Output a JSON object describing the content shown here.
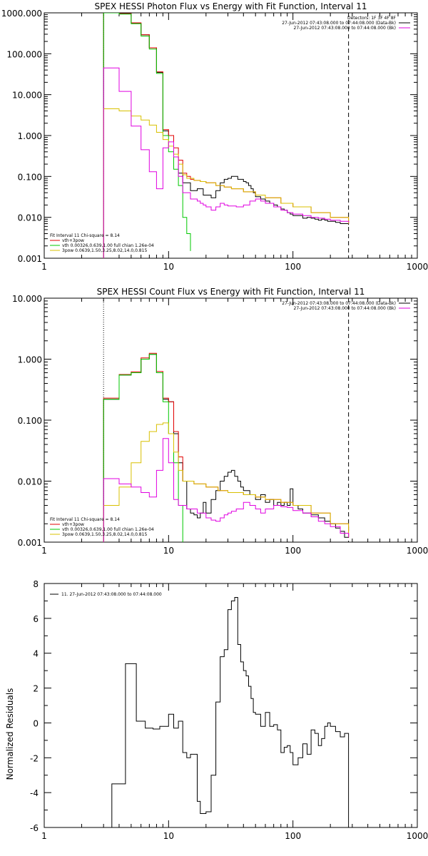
{
  "chart_data": [
    {
      "type": "line",
      "title": "SPEX HESSI Photon Flux vs Energy with Fit Function, Interval 11",
      "xscale": "log",
      "yscale": "log",
      "xlim": [
        1,
        1000
      ],
      "ylim": [
        0.001,
        1000
      ],
      "xticks": [
        "1",
        "10",
        "100",
        "1000"
      ],
      "yticks": [
        "0.001",
        "0.010",
        "0.100",
        "1.000",
        "10.000",
        "100.000",
        "1000.000"
      ],
      "vlines": [
        {
          "x": 3,
          "style": "dotted"
        },
        {
          "x": 280,
          "style": "dashed"
        }
      ],
      "legend_top": [
        "Detectors: 1F 3F 4F 8F",
        "27-Jun-2012 07:43:08.000 to 07:44:08.000 (Data-Bk)",
        "27-Jun-2012 07:43:08.000 to 07:44:08.000 (Bk)"
      ],
      "legend_bottom": [
        "Fit Interval 11    Chi-square = 8.14",
        "vth+3pow",
        "vth 0.00326,0.639,1.00  full chian 1.26e-04",
        "3pow 0.0639,1.50,3.25,8.02,14.0,0.815"
      ],
      "series": [
        {
          "name": "Data-Bk",
          "color": "#000000",
          "x": [
            3,
            3.5,
            4,
            4.5,
            5,
            5.5,
            6,
            6.5,
            7,
            7.5,
            8,
            8.5,
            9,
            10,
            11,
            12,
            13,
            14,
            15,
            16,
            17,
            18,
            19,
            20,
            22,
            24,
            26,
            28,
            30,
            32,
            34,
            36,
            38,
            40,
            42,
            44,
            46,
            48,
            50,
            55,
            60,
            65,
            70,
            75,
            80,
            85,
            90,
            95,
            100,
            110,
            120,
            130,
            140,
            150,
            160,
            170,
            180,
            190,
            200,
            220,
            240,
            260,
            280
          ],
          "y": [
            1000,
            1000,
            940,
            940,
            560,
            560,
            290,
            290,
            140,
            140,
            35,
            35,
            1.3,
            1.0,
            0.3,
            0.12,
            0.07,
            0.07,
            0.045,
            0.045,
            0.05,
            0.05,
            0.035,
            0.035,
            0.03,
            0.045,
            0.07,
            0.085,
            0.09,
            0.1,
            0.1,
            0.085,
            0.085,
            0.075,
            0.07,
            0.06,
            0.05,
            0.04,
            0.032,
            0.028,
            0.025,
            0.022,
            0.02,
            0.018,
            0.016,
            0.015,
            0.013,
            0.012,
            0.011,
            0.011,
            0.0095,
            0.01,
            0.0095,
            0.009,
            0.0085,
            0.009,
            0.0085,
            0.008,
            0.008,
            0.0075,
            0.007,
            0.007,
            0.0065
          ]
        },
        {
          "name": "vth+3pow",
          "color": "#e00000",
          "x": [
            3,
            3.5,
            4,
            4.5,
            5,
            5.5,
            6,
            6.5,
            7,
            7.5,
            8,
            8.5,
            9,
            10,
            11,
            12,
            13,
            14,
            15,
            16,
            18,
            20,
            24,
            28,
            32,
            40,
            50,
            60,
            80,
            100,
            140,
            200,
            280
          ],
          "y": [
            1000,
            1000,
            960,
            960,
            570,
            570,
            290,
            290,
            140,
            140,
            36,
            36,
            1.4,
            1.0,
            0.5,
            0.25,
            0.12,
            0.1,
            0.085,
            0.08,
            0.075,
            0.07,
            0.06,
            0.055,
            0.05,
            0.042,
            0.035,
            0.03,
            0.022,
            0.018,
            0.013,
            0.01,
            0.007
          ]
        },
        {
          "name": "vth",
          "color": "#00c800",
          "x": [
            3,
            3.5,
            4,
            4.5,
            5,
            5.5,
            6,
            6.5,
            7,
            7.5,
            8,
            8.5,
            9,
            10,
            11,
            12,
            13,
            14,
            15
          ],
          "y": [
            1000,
            1000,
            930,
            930,
            540,
            540,
            270,
            270,
            130,
            130,
            33,
            33,
            1.0,
            0.4,
            0.15,
            0.06,
            0.01,
            0.004,
            0.0015
          ]
        },
        {
          "name": "3pow",
          "color": "#d8c000",
          "x": [
            3,
            3.5,
            4,
            5,
            6,
            7,
            8,
            9,
            10,
            11,
            12,
            13,
            14,
            16,
            18,
            20,
            24,
            28,
            32,
            40,
            50,
            60,
            80,
            100,
            140,
            200,
            280
          ],
          "y": [
            4.5,
            4.5,
            4.0,
            3.0,
            2.4,
            1.8,
            1.2,
            0.8,
            0.55,
            0.35,
            0.2,
            0.11,
            0.09,
            0.08,
            0.075,
            0.07,
            0.06,
            0.055,
            0.05,
            0.042,
            0.035,
            0.03,
            0.022,
            0.018,
            0.013,
            0.01,
            0.007
          ]
        },
        {
          "name": "Bk",
          "color": "#e000e0",
          "x": [
            3,
            3.5,
            4,
            4.5,
            5,
            5.5,
            6,
            6.5,
            7,
            7.5,
            8,
            8.5,
            9,
            10,
            11,
            12,
            13,
            14,
            15,
            16,
            17,
            18,
            19,
            20,
            22,
            24,
            26,
            28,
            30,
            35,
            40,
            45,
            50,
            55,
            60,
            70,
            80,
            90,
            100,
            120,
            140,
            160,
            180,
            200,
            240,
            280
          ],
          "y": [
            45,
            45,
            12,
            12,
            1.7,
            1.7,
            0.45,
            0.45,
            0.13,
            0.13,
            0.05,
            0.05,
            0.5,
            0.7,
            0.3,
            0.1,
            0.04,
            0.04,
            0.028,
            0.028,
            0.025,
            0.022,
            0.02,
            0.018,
            0.015,
            0.018,
            0.022,
            0.02,
            0.019,
            0.018,
            0.02,
            0.025,
            0.028,
            0.025,
            0.022,
            0.018,
            0.015,
            0.013,
            0.012,
            0.011,
            0.01,
            0.0095,
            0.009,
            0.0085,
            0.008,
            0.0075
          ]
        }
      ]
    },
    {
      "type": "line",
      "title": "SPEX HESSI Count Flux vs Energy with Fit Function, Interval 11",
      "xscale": "log",
      "yscale": "log",
      "xlim": [
        1,
        1000
      ],
      "ylim": [
        0.001,
        10
      ],
      "xticks": [
        "1",
        "10",
        "100",
        "1000"
      ],
      "yticks": [
        "0.001",
        "0.010",
        "0.100",
        "1.000",
        "10.000"
      ],
      "vlines": [
        {
          "x": 3,
          "style": "dotted"
        },
        {
          "x": 280,
          "style": "dashed"
        }
      ],
      "legend_top": [
        "27-Jun-2012 07:43:08.000 to 07:44:08.000 (Data-Bk)",
        "27-Jun-2012 07:43:08.000 to 07:44:08.000 (Bk)"
      ],
      "legend_bottom": [
        "Fit Interval 11    Chi-square = 8.14",
        "vth+3pow",
        "vth 0.00326,0.639,1.00  full chian 1.26e-04",
        "3pow 0.0639,1.50,3.25,8.02,14.0,0.815"
      ],
      "series": [
        {
          "name": "Data-Bk",
          "color": "#000000",
          "x": [
            3,
            3.5,
            4,
            4.5,
            5,
            5.5,
            6,
            6.5,
            7,
            7.5,
            8,
            8.5,
            9,
            10,
            11,
            12,
            13,
            14,
            15,
            16,
            17,
            18,
            19,
            20,
            22,
            24,
            26,
            28,
            30,
            32,
            34,
            36,
            38,
            40,
            45,
            50,
            55,
            60,
            65,
            70,
            75,
            80,
            85,
            90,
            95,
            100,
            110,
            120,
            140,
            160,
            180,
            200,
            220,
            240,
            260,
            280
          ],
          "y": [
            0.22,
            0.22,
            0.55,
            0.55,
            0.6,
            0.6,
            1.0,
            1.0,
            1.2,
            1.2,
            0.6,
            0.6,
            0.22,
            0.2,
            0.06,
            0.02,
            0.01,
            0.0035,
            0.003,
            0.0028,
            0.0025,
            0.003,
            0.0045,
            0.003,
            0.005,
            0.007,
            0.01,
            0.012,
            0.014,
            0.015,
            0.012,
            0.01,
            0.008,
            0.007,
            0.006,
            0.005,
            0.006,
            0.0045,
            0.005,
            0.004,
            0.0045,
            0.004,
            0.0045,
            0.004,
            0.0075,
            0.004,
            0.0035,
            0.003,
            0.0028,
            0.0025,
            0.0022,
            0.002,
            0.0017,
            0.0015,
            0.0012,
            0.0012
          ]
        },
        {
          "name": "vth+3pow",
          "color": "#e00000",
          "x": [
            3,
            3.5,
            4,
            4.5,
            5,
            5.5,
            6,
            6.5,
            7,
            7.5,
            8,
            8.5,
            9,
            10,
            11,
            12,
            13,
            16,
            20,
            25,
            30,
            40,
            50,
            60,
            80,
            100,
            140,
            200,
            280
          ],
          "y": [
            0.23,
            0.23,
            0.56,
            0.56,
            0.62,
            0.62,
            1.05,
            1.05,
            1.25,
            1.25,
            0.63,
            0.63,
            0.23,
            0.2,
            0.065,
            0.025,
            0.01,
            0.009,
            0.008,
            0.007,
            0.0065,
            0.006,
            0.0055,
            0.005,
            0.0045,
            0.004,
            0.003,
            0.002,
            0.0012
          ]
        },
        {
          "name": "vth",
          "color": "#00c800",
          "x": [
            3,
            3.5,
            4,
            4.5,
            5,
            5.5,
            6,
            6.5,
            7,
            7.5,
            8,
            8.5,
            9,
            10,
            11,
            12,
            13
          ],
          "y": [
            0.22,
            0.22,
            0.55,
            0.55,
            0.6,
            0.6,
            1.0,
            1.0,
            1.2,
            1.2,
            0.6,
            0.6,
            0.2,
            0.06,
            0.02,
            0.004,
            0.001
          ]
        },
        {
          "name": "3pow",
          "color": "#d8c000",
          "x": [
            3,
            3.5,
            4,
            4.5,
            5,
            5.5,
            6,
            6.5,
            7,
            7.5,
            8,
            8.5,
            9,
            10,
            11,
            12,
            13,
            16,
            20,
            25,
            30,
            40,
            50,
            60,
            80,
            100,
            140,
            200,
            280
          ],
          "y": [
            0.004,
            0.004,
            0.008,
            0.008,
            0.02,
            0.02,
            0.045,
            0.045,
            0.065,
            0.065,
            0.085,
            0.085,
            0.09,
            0.06,
            0.03,
            0.015,
            0.01,
            0.009,
            0.008,
            0.007,
            0.0065,
            0.006,
            0.0055,
            0.005,
            0.0045,
            0.004,
            0.003,
            0.002,
            0.0012
          ]
        },
        {
          "name": "Bk",
          "color": "#e000e0",
          "x": [
            3,
            3.5,
            4,
            4.5,
            5,
            5.5,
            6,
            6.5,
            7,
            7.5,
            8,
            8.5,
            9,
            10,
            11,
            12,
            13,
            14,
            15,
            16,
            17,
            18,
            20,
            22,
            24,
            26,
            28,
            30,
            32,
            35,
            40,
            45,
            50,
            55,
            60,
            70,
            80,
            90,
            100,
            120,
            140,
            160,
            180,
            200,
            240,
            280
          ],
          "y": [
            0.011,
            0.011,
            0.009,
            0.009,
            0.008,
            0.008,
            0.0065,
            0.0065,
            0.0055,
            0.0055,
            0.015,
            0.015,
            0.05,
            0.02,
            0.005,
            0.004,
            0.004,
            0.0035,
            0.0035,
            0.0035,
            0.003,
            0.003,
            0.0025,
            0.0023,
            0.0022,
            0.0025,
            0.0028,
            0.003,
            0.0032,
            0.0035,
            0.0045,
            0.004,
            0.0035,
            0.003,
            0.0035,
            0.004,
            0.0038,
            0.0037,
            0.0033,
            0.003,
            0.0026,
            0.0022,
            0.002,
            0.0018,
            0.0014,
            0.0012
          ]
        }
      ]
    },
    {
      "type": "line",
      "title": "",
      "xscale": "log",
      "yscale": "linear",
      "xlim": [
        1,
        1000
      ],
      "ylim": [
        -6,
        8
      ],
      "xticks": [
        "1",
        "10",
        "100",
        "1000"
      ],
      "yticks": [
        "-6",
        "-4",
        "-2",
        "0",
        "2",
        "4",
        "6",
        "8"
      ],
      "ylabel": "Normalized Residuals",
      "legend": [
        "11. 27-Jun-2012 07:43:08.000 to 07:44:08.000"
      ],
      "series": [
        {
          "name": "11. 27-Jun-2012 07:43:08.000 to 07:44:08.000",
          "color": "#000000",
          "x": [
            3,
            3.5,
            4,
            4.5,
            5,
            5.5,
            6,
            6.5,
            7,
            7.5,
            8,
            8.5,
            9,
            10,
            11,
            12,
            13,
            14,
            15,
            16,
            17,
            18,
            19,
            20,
            22,
            24,
            26,
            28,
            30,
            32,
            34,
            36,
            38,
            40,
            42,
            44,
            46,
            48,
            50,
            55,
            60,
            65,
            70,
            75,
            80,
            85,
            90,
            95,
            100,
            110,
            120,
            130,
            140,
            150,
            160,
            170,
            180,
            190,
            200,
            220,
            240,
            260,
            280
          ],
          "y": [
            -6,
            -3.5,
            -3.5,
            3.4,
            3.4,
            0.1,
            0.1,
            -0.3,
            -0.3,
            -0.35,
            -0.35,
            -0.2,
            -0.2,
            0.5,
            -0.3,
            0.1,
            -1.7,
            -2.0,
            -1.8,
            -1.8,
            -4.5,
            -5.2,
            -5.2,
            -5.1,
            -3.0,
            1.2,
            3.8,
            4.2,
            6.5,
            7.0,
            7.2,
            4.5,
            3.5,
            3.0,
            2.7,
            2.1,
            1.4,
            0.6,
            0.5,
            -0.2,
            0.6,
            -0.2,
            -0.1,
            -0.4,
            -1.7,
            -1.4,
            -1.3,
            -1.7,
            -2.4,
            -2.0,
            -1.2,
            -1.8,
            -0.4,
            -0.6,
            -1.3,
            -0.9,
            -0.2,
            0,
            -0.2,
            -0.5,
            -0.8,
            -0.6,
            -6
          ]
        }
      ]
    }
  ]
}
